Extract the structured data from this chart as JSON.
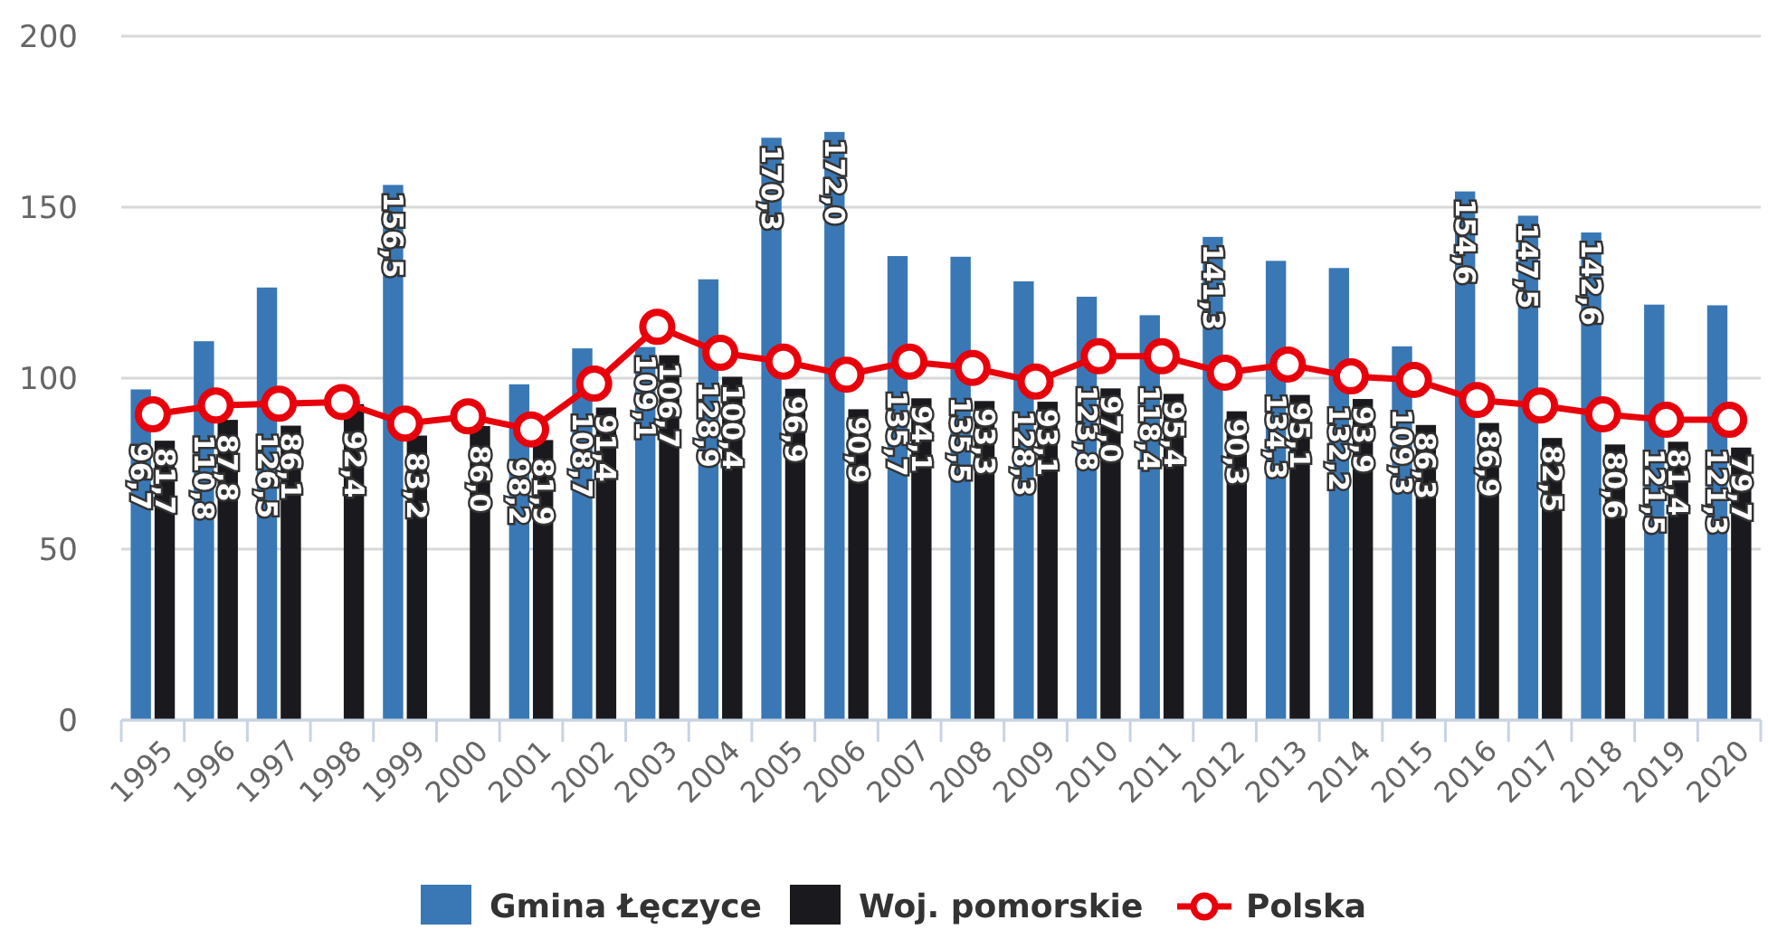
{
  "chart_data": {
    "type": "bar",
    "categories": [
      "1995",
      "1996",
      "1997",
      "1998",
      "1999",
      "2000",
      "2001",
      "2002",
      "2003",
      "2004",
      "2005",
      "2006",
      "2007",
      "2008",
      "2009",
      "2010",
      "2011",
      "2012",
      "2013",
      "2014",
      "2015",
      "2016",
      "2017",
      "2018",
      "2019",
      "2020"
    ],
    "ylim": [
      0,
      200
    ],
    "yticks": [
      0,
      50,
      100,
      150,
      200
    ],
    "grid": "y",
    "legend": "bottom",
    "series": [
      {
        "name": "Gmina Łęczyce",
        "color": "#3a78b5",
        "values": [
          96.7,
          110.8,
          126.5,
          null,
          156.5,
          null,
          98.2,
          108.7,
          109.1,
          128.9,
          170.3,
          172.0,
          135.7,
          135.5,
          128.3,
          123.8,
          118.4,
          141.3,
          134.3,
          132.2,
          109.3,
          154.6,
          147.5,
          142.6,
          121.5,
          121.3
        ],
        "value_labels": [
          "96,7",
          "110,8",
          "126,5",
          null,
          "156,5",
          null,
          "98,2",
          "108,7",
          "109,1",
          "128,9",
          "170,3",
          "172,0",
          "135,7",
          "135,5",
          "128,3",
          "123,8",
          "118,4",
          "141,3",
          "134,3",
          "132,2",
          "109,3",
          "154,6",
          "147,5",
          "142,6",
          "121,5",
          "121,3"
        ]
      },
      {
        "name": "Woj. pomorskie",
        "color": "#1a1a1e",
        "values": [
          81.7,
          87.8,
          86.1,
          92.4,
          83.2,
          86.0,
          81.9,
          91.4,
          106.7,
          100.4,
          96.9,
          90.9,
          94.1,
          93.3,
          93.1,
          97.0,
          95.4,
          90.3,
          95.1,
          93.9,
          86.3,
          86.9,
          82.5,
          80.6,
          81.4,
          79.7
        ],
        "value_labels": [
          "81,7",
          "87,8",
          "86,1",
          "92,4",
          "83,2",
          "86,0",
          "81,9",
          "91,4",
          "106,7",
          "100,4",
          "96,9",
          "90,9",
          "94,1",
          "93,3",
          "93,1",
          "97,0",
          "95,4",
          "90,3",
          "95,1",
          "93,9",
          "86,3",
          "86,9",
          "82,5",
          "80,6",
          "81,4",
          "79,7"
        ]
      },
      {
        "name": "Polska",
        "type": "line",
        "color": "#e8000b",
        "marker": "circle",
        "values": [
          89.4,
          92,
          92.5,
          93,
          86.7,
          88.8,
          85,
          98.4,
          115,
          107.4,
          104.8,
          101,
          104.8,
          103,
          99,
          106.4,
          106.4,
          101.6,
          104,
          100.5,
          99.5,
          93.6,
          92,
          89.4,
          87.8,
          87.8
        ]
      }
    ]
  }
}
